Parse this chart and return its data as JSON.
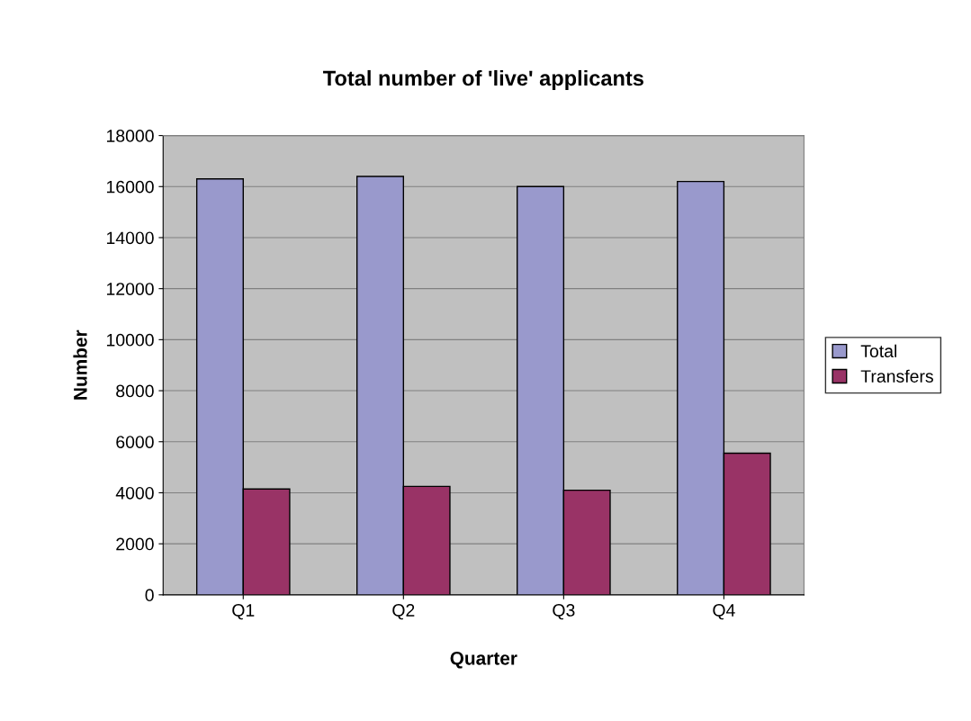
{
  "chart_data": {
    "type": "bar",
    "title": "Total number of 'live' applicants",
    "xlabel": "Quarter",
    "ylabel": "Number",
    "categories": [
      "Q1",
      "Q2",
      "Q3",
      "Q4"
    ],
    "series": [
      {
        "name": "Total",
        "color": "#9999cc",
        "values": [
          16300,
          16400,
          16000,
          16200
        ]
      },
      {
        "name": "Transfers",
        "color": "#993366",
        "values": [
          4150,
          4250,
          4100,
          5550
        ]
      }
    ],
    "ylim": [
      0,
      18000
    ],
    "yticks": [
      0,
      2000,
      4000,
      6000,
      8000,
      10000,
      12000,
      14000,
      16000,
      18000
    ],
    "grid": "y",
    "legend": "right"
  }
}
